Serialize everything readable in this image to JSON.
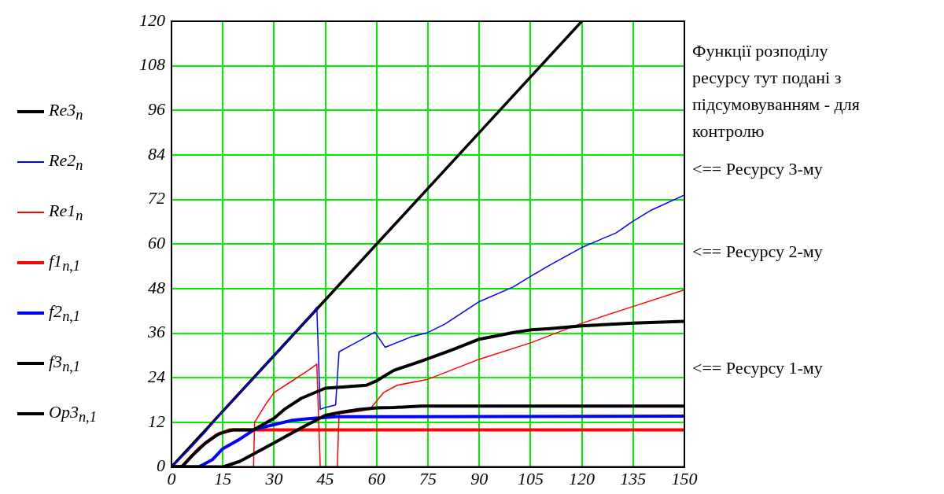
{
  "chart_data": {
    "type": "line",
    "legend": "left",
    "grid": true,
    "xlim": [
      0,
      150
    ],
    "xticks": [
      0,
      15,
      30,
      45,
      60,
      75,
      90,
      105,
      120,
      135,
      150
    ],
    "ylim": [
      0,
      120
    ],
    "yticks": [
      0,
      12,
      24,
      36,
      48,
      60,
      72,
      84,
      96,
      108,
      120
    ],
    "annotations": [
      "Функції розподілу ресурсу тут подані з підсумовуванням - для контролю",
      "<== Ресурсу 3-му",
      "<== Ресурсу 2-му",
      "<== Ресурсу 1-му"
    ],
    "series": [
      {
        "name": "Re3$_{n}$",
        "color": "#000000",
        "x": [
          0,
          30,
          60,
          90,
          120
        ],
        "values": [
          0,
          30,
          60,
          90,
          120
        ]
      },
      {
        "name": "Re2$_{n}$",
        "color": "#0000ff",
        "x": [
          0,
          5,
          10,
          15,
          20,
          25,
          30,
          35,
          40,
          42.5,
          43.5,
          45,
          48,
          49,
          52,
          55,
          59.5,
          62.5,
          66,
          70,
          75,
          80,
          90,
          100,
          105,
          110,
          120,
          130,
          135,
          140,
          150
        ],
        "values": [
          0,
          4.5,
          9.5,
          15,
          20,
          25,
          30,
          35,
          40,
          43,
          15.5,
          16,
          16.7,
          31,
          32.5,
          34,
          36.3,
          32.2,
          33.5,
          35,
          36.2,
          38.5,
          44.5,
          48.5,
          51.3,
          54,
          59.1,
          63,
          66.2,
          69,
          73.2
        ]
      },
      {
        "name": "Re1$_{n}$",
        "color": "#ff0000",
        "x": [
          0,
          24,
          24.3,
          28,
          30,
          35,
          40,
          42.5,
          43.5,
          48.5,
          49,
          55,
          58,
          62,
          66,
          75,
          90,
          105,
          120,
          135,
          150
        ],
        "values": [
          0,
          0,
          12,
          17.5,
          20,
          23,
          26,
          27.7,
          0,
          0,
          14.3,
          15,
          15.5,
          20,
          22,
          23.6,
          29,
          33.4,
          38.7,
          43.2,
          47.7
        ]
      },
      {
        "name": "f1$_{n,1}$",
        "color": "#ff0000",
        "x": [
          0,
          3,
          8,
          13,
          17,
          24,
          150
        ],
        "values": [
          0,
          0,
          5,
          8.5,
          10,
          10,
          10
        ]
      },
      {
        "name": "f2$_{n,1}$",
        "color": "#0000ff",
        "x": [
          0,
          8,
          12,
          15,
          20,
          24.5,
          30,
          35,
          40,
          48,
          150
        ],
        "values": [
          0,
          0,
          2,
          4.9,
          7.5,
          10.2,
          11.4,
          12.5,
          13,
          13.5,
          13.7
        ]
      },
      {
        "name": "f3$_{n,1}$",
        "color": "#000000",
        "x": [
          0,
          15,
          20,
          25,
          30,
          35,
          40,
          45,
          50,
          55,
          60,
          65,
          73,
          150
        ],
        "values": [
          0,
          0,
          1.5,
          4,
          6.5,
          9,
          11.5,
          13.9,
          14.8,
          15.5,
          15.9,
          16,
          16.4,
          16.4
        ]
      },
      {
        "name": "Op3$_{n,1}$",
        "color": "#000000",
        "x": [
          0,
          3,
          6,
          10,
          14,
          18,
          24,
          30,
          33,
          38,
          45,
          50,
          57,
          60,
          65,
          73,
          82,
          90,
          100,
          105,
          110,
          120,
          135,
          150
        ],
        "values": [
          0,
          0,
          3,
          6.5,
          9,
          10,
          10,
          13.1,
          15.5,
          18.5,
          21.2,
          21.5,
          22,
          23.2,
          26,
          28.5,
          31.5,
          34.4,
          36.2,
          36.9,
          37.2,
          38,
          38.7,
          39.2
        ]
      }
    ]
  }
}
